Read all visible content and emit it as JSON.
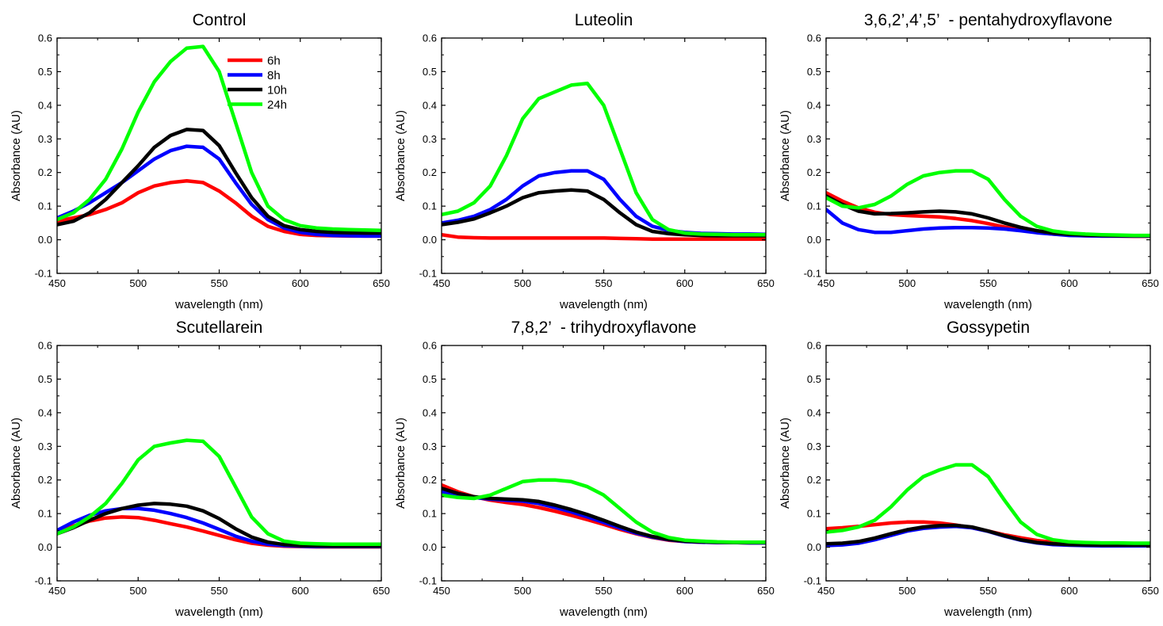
{
  "chart_data": [
    {
      "type": "line",
      "title": "Control",
      "xlabel": "wavelength (nm)",
      "ylabel": "Absorbance (AU)",
      "xlim": [
        450,
        650
      ],
      "ylim": [
        -0.1,
        0.6
      ],
      "xticks": [
        "450",
        "500",
        "550",
        "600",
        "650"
      ],
      "yticks": [
        "-0.1",
        "0.0",
        "0.1",
        "0.2",
        "0.3",
        "0.4",
        "0.5",
        "0.6"
      ],
      "grid": false,
      "legend": {
        "placement": "top-center",
        "entries": [
          "6h",
          "8h",
          "10h",
          "24h"
        ]
      },
      "x": [
        450,
        460,
        470,
        480,
        490,
        500,
        510,
        520,
        530,
        540,
        550,
        560,
        570,
        580,
        590,
        600,
        610,
        620,
        630,
        640,
        650
      ],
      "series": [
        {
          "name": "6h",
          "color": "#ff0000",
          "values": [
            0.055,
            0.065,
            0.075,
            0.09,
            0.11,
            0.14,
            0.16,
            0.17,
            0.175,
            0.17,
            0.145,
            0.11,
            0.07,
            0.04,
            0.025,
            0.016,
            0.013,
            0.012,
            0.011,
            0.011,
            0.011
          ]
        },
        {
          "name": "8h",
          "color": "#0000ff",
          "values": [
            0.065,
            0.085,
            0.11,
            0.14,
            0.17,
            0.205,
            0.24,
            0.265,
            0.278,
            0.275,
            0.24,
            0.17,
            0.105,
            0.06,
            0.035,
            0.022,
            0.016,
            0.013,
            0.012,
            0.011,
            0.011
          ]
        },
        {
          "name": "10h",
          "color": "#000000",
          "values": [
            0.045,
            0.055,
            0.08,
            0.12,
            0.17,
            0.22,
            0.275,
            0.31,
            0.328,
            0.325,
            0.28,
            0.2,
            0.125,
            0.07,
            0.042,
            0.03,
            0.025,
            0.022,
            0.021,
            0.02,
            0.02
          ]
        },
        {
          "name": "24h",
          "color": "#00ff00",
          "values": [
            0.06,
            0.08,
            0.12,
            0.18,
            0.27,
            0.38,
            0.47,
            0.53,
            0.57,
            0.575,
            0.5,
            0.35,
            0.2,
            0.1,
            0.06,
            0.042,
            0.035,
            0.032,
            0.03,
            0.029,
            0.028
          ]
        }
      ]
    },
    {
      "type": "line",
      "title": "Luteolin",
      "xlabel": "wavelength (nm)",
      "ylabel": "Absorbance (AU)",
      "xlim": [
        450,
        650
      ],
      "ylim": [
        -0.1,
        0.6
      ],
      "xticks": [
        "450",
        "500",
        "550",
        "600",
        "650"
      ],
      "yticks": [
        "-0.1",
        "0.0",
        "0.1",
        "0.2",
        "0.3",
        "0.4",
        "0.5",
        "0.6"
      ],
      "grid": false,
      "x": [
        450,
        460,
        470,
        480,
        490,
        500,
        510,
        520,
        530,
        540,
        550,
        560,
        570,
        580,
        590,
        600,
        610,
        620,
        630,
        640,
        650
      ],
      "series": [
        {
          "name": "6h",
          "color": "#ff0000",
          "values": [
            0.015,
            0.008,
            0.006,
            0.005,
            0.005,
            0.005,
            0.005,
            0.005,
            0.005,
            0.005,
            0.005,
            0.004,
            0.003,
            0.002,
            0.002,
            0.002,
            0.002,
            0.002,
            0.002,
            0.002,
            0.002
          ]
        },
        {
          "name": "8h",
          "color": "#0000ff",
          "values": [
            0.05,
            0.058,
            0.07,
            0.09,
            0.12,
            0.16,
            0.19,
            0.2,
            0.205,
            0.205,
            0.18,
            0.12,
            0.07,
            0.04,
            0.028,
            0.022,
            0.019,
            0.018,
            0.017,
            0.017,
            0.016
          ]
        },
        {
          "name": "10h",
          "color": "#000000",
          "values": [
            0.045,
            0.052,
            0.062,
            0.08,
            0.1,
            0.125,
            0.14,
            0.145,
            0.148,
            0.145,
            0.12,
            0.08,
            0.045,
            0.025,
            0.018,
            0.015,
            0.013,
            0.012,
            0.012,
            0.012,
            0.012
          ]
        },
        {
          "name": "24h",
          "color": "#00ff00",
          "values": [
            0.075,
            0.085,
            0.11,
            0.16,
            0.25,
            0.36,
            0.42,
            0.44,
            0.46,
            0.465,
            0.4,
            0.27,
            0.14,
            0.06,
            0.03,
            0.02,
            0.017,
            0.016,
            0.015,
            0.015,
            0.015
          ]
        }
      ]
    },
    {
      "type": "line",
      "title": "3,6,2’,4’,5’  - pentahydroxyflavone",
      "xlabel": "wavelength (nm)",
      "ylabel": "Absorbance (AU)",
      "xlim": [
        450,
        650
      ],
      "ylim": [
        -0.1,
        0.6
      ],
      "xticks": [
        "450",
        "500",
        "550",
        "600",
        "650"
      ],
      "yticks": [
        "-0.1",
        "0.0",
        "0.1",
        "0.2",
        "0.3",
        "0.4",
        "0.5",
        "0.6"
      ],
      "grid": false,
      "x": [
        450,
        460,
        470,
        480,
        490,
        500,
        510,
        520,
        530,
        540,
        550,
        560,
        570,
        580,
        590,
        600,
        610,
        620,
        630,
        640,
        650
      ],
      "series": [
        {
          "name": "6h",
          "color": "#ff0000",
          "values": [
            0.14,
            0.115,
            0.095,
            0.082,
            0.075,
            0.072,
            0.07,
            0.068,
            0.063,
            0.057,
            0.048,
            0.038,
            0.029,
            0.022,
            0.017,
            0.014,
            0.012,
            0.011,
            0.011,
            0.01,
            0.01
          ]
        },
        {
          "name": "8h",
          "color": "#0000ff",
          "values": [
            0.09,
            0.05,
            0.03,
            0.022,
            0.022,
            0.027,
            0.032,
            0.035,
            0.036,
            0.036,
            0.035,
            0.032,
            0.027,
            0.021,
            0.017,
            0.013,
            0.012,
            0.011,
            0.011,
            0.011,
            0.011
          ]
        },
        {
          "name": "10h",
          "color": "#000000",
          "values": [
            0.13,
            0.105,
            0.085,
            0.077,
            0.078,
            0.08,
            0.083,
            0.085,
            0.083,
            0.077,
            0.065,
            0.05,
            0.037,
            0.027,
            0.02,
            0.016,
            0.014,
            0.013,
            0.012,
            0.012,
            0.012
          ]
        },
        {
          "name": "24h",
          "color": "#00ff00",
          "values": [
            0.125,
            0.1,
            0.095,
            0.105,
            0.13,
            0.165,
            0.19,
            0.2,
            0.205,
            0.205,
            0.18,
            0.12,
            0.07,
            0.04,
            0.026,
            0.02,
            0.017,
            0.015,
            0.014,
            0.013,
            0.013
          ]
        }
      ]
    },
    {
      "type": "line",
      "title": "Scutellarein",
      "xlabel": "wavelength (nm)",
      "ylabel": "Absorbance (AU)",
      "xlim": [
        450,
        650
      ],
      "ylim": [
        -0.1,
        0.6
      ],
      "xticks": [
        "450",
        "500",
        "550",
        "600",
        "650"
      ],
      "yticks": [
        "-0.1",
        "0.0",
        "0.1",
        "0.2",
        "0.3",
        "0.4",
        "0.5",
        "0.6"
      ],
      "grid": false,
      "x": [
        450,
        460,
        470,
        480,
        490,
        500,
        510,
        520,
        530,
        540,
        550,
        560,
        570,
        580,
        590,
        600,
        610,
        620,
        630,
        640,
        650
      ],
      "series": [
        {
          "name": "6h",
          "color": "#ff0000",
          "values": [
            0.045,
            0.063,
            0.078,
            0.087,
            0.09,
            0.088,
            0.08,
            0.07,
            0.06,
            0.048,
            0.035,
            0.022,
            0.012,
            0.006,
            0.003,
            0.002,
            0.001,
            0.001,
            0.001,
            0.001,
            0.001
          ]
        },
        {
          "name": "8h",
          "color": "#0000ff",
          "values": [
            0.05,
            0.075,
            0.095,
            0.108,
            0.115,
            0.115,
            0.11,
            0.1,
            0.088,
            0.072,
            0.053,
            0.033,
            0.018,
            0.009,
            0.005,
            0.003,
            0.002,
            0.002,
            0.002,
            0.002,
            0.002
          ]
        },
        {
          "name": "10h",
          "color": "#000000",
          "values": [
            0.04,
            0.058,
            0.08,
            0.1,
            0.115,
            0.125,
            0.13,
            0.128,
            0.122,
            0.108,
            0.085,
            0.055,
            0.03,
            0.015,
            0.008,
            0.005,
            0.004,
            0.003,
            0.003,
            0.003,
            0.003
          ]
        },
        {
          "name": "24h",
          "color": "#00ff00",
          "values": [
            0.04,
            0.06,
            0.09,
            0.13,
            0.19,
            0.26,
            0.3,
            0.31,
            0.318,
            0.315,
            0.27,
            0.18,
            0.09,
            0.04,
            0.018,
            0.012,
            0.01,
            0.009,
            0.009,
            0.009,
            0.009
          ]
        }
      ]
    },
    {
      "type": "line",
      "title": "7,8,2’  - trihydroxyflavone",
      "xlabel": "wavelength (nm)",
      "ylabel": "Absorbance (AU)",
      "xlim": [
        450,
        650
      ],
      "ylim": [
        -0.1,
        0.6
      ],
      "xticks": [
        "450",
        "500",
        "550",
        "600",
        "650"
      ],
      "yticks": [
        "-0.1",
        "0.0",
        "0.1",
        "0.2",
        "0.3",
        "0.4",
        "0.5",
        "0.6"
      ],
      "grid": false,
      "x": [
        450,
        460,
        470,
        480,
        490,
        500,
        510,
        520,
        530,
        540,
        550,
        560,
        570,
        580,
        590,
        600,
        610,
        620,
        630,
        640,
        650
      ],
      "series": [
        {
          "name": "6h",
          "color": "#ff0000",
          "values": [
            0.185,
            0.165,
            0.15,
            0.14,
            0.133,
            0.127,
            0.118,
            0.107,
            0.095,
            0.082,
            0.068,
            0.053,
            0.04,
            0.029,
            0.021,
            0.017,
            0.015,
            0.014,
            0.014,
            0.013,
            0.013
          ]
        },
        {
          "name": "8h",
          "color": "#0000ff",
          "values": [
            0.165,
            0.155,
            0.148,
            0.143,
            0.14,
            0.137,
            0.13,
            0.118,
            0.105,
            0.09,
            0.074,
            0.057,
            0.042,
            0.03,
            0.022,
            0.017,
            0.015,
            0.014,
            0.014,
            0.013,
            0.013
          ]
        },
        {
          "name": "10h",
          "color": "#000000",
          "values": [
            0.175,
            0.16,
            0.15,
            0.145,
            0.143,
            0.141,
            0.136,
            0.125,
            0.112,
            0.097,
            0.08,
            0.062,
            0.045,
            0.032,
            0.023,
            0.018,
            0.016,
            0.015,
            0.014,
            0.014,
            0.014
          ]
        },
        {
          "name": "24h",
          "color": "#00ff00",
          "values": [
            0.155,
            0.148,
            0.145,
            0.155,
            0.175,
            0.195,
            0.2,
            0.2,
            0.195,
            0.18,
            0.155,
            0.115,
            0.075,
            0.045,
            0.029,
            0.021,
            0.018,
            0.016,
            0.015,
            0.015,
            0.015
          ]
        }
      ]
    },
    {
      "type": "line",
      "title": "Gossypetin",
      "xlabel": "wavelength (nm)",
      "ylabel": "Absorbance (AU)",
      "xlim": [
        450,
        650
      ],
      "ylim": [
        -0.1,
        0.6
      ],
      "xticks": [
        "450",
        "500",
        "550",
        "600",
        "650"
      ],
      "yticks": [
        "-0.1",
        "0.0",
        "0.1",
        "0.2",
        "0.3",
        "0.4",
        "0.5",
        "0.6"
      ],
      "grid": false,
      "x": [
        450,
        460,
        470,
        480,
        490,
        500,
        510,
        520,
        530,
        540,
        550,
        560,
        570,
        580,
        590,
        600,
        610,
        620,
        630,
        640,
        650
      ],
      "series": [
        {
          "name": "6h",
          "color": "#ff0000",
          "values": [
            0.055,
            0.058,
            0.062,
            0.067,
            0.072,
            0.075,
            0.075,
            0.072,
            0.066,
            0.058,
            0.048,
            0.037,
            0.028,
            0.02,
            0.015,
            0.012,
            0.01,
            0.009,
            0.008,
            0.008,
            0.008
          ]
        },
        {
          "name": "8h",
          "color": "#0000ff",
          "values": [
            0.005,
            0.007,
            0.012,
            0.022,
            0.035,
            0.048,
            0.056,
            0.06,
            0.062,
            0.058,
            0.047,
            0.033,
            0.021,
            0.013,
            0.008,
            0.006,
            0.005,
            0.004,
            0.004,
            0.004,
            0.004
          ]
        },
        {
          "name": "10h",
          "color": "#000000",
          "values": [
            0.01,
            0.012,
            0.017,
            0.027,
            0.04,
            0.052,
            0.06,
            0.064,
            0.065,
            0.06,
            0.048,
            0.034,
            0.022,
            0.014,
            0.01,
            0.008,
            0.007,
            0.006,
            0.006,
            0.006,
            0.006
          ]
        },
        {
          "name": "24h",
          "color": "#00ff00",
          "values": [
            0.045,
            0.05,
            0.06,
            0.08,
            0.12,
            0.17,
            0.21,
            0.23,
            0.245,
            0.245,
            0.21,
            0.14,
            0.075,
            0.038,
            0.022,
            0.016,
            0.014,
            0.013,
            0.013,
            0.012,
            0.012
          ]
        }
      ]
    }
  ]
}
